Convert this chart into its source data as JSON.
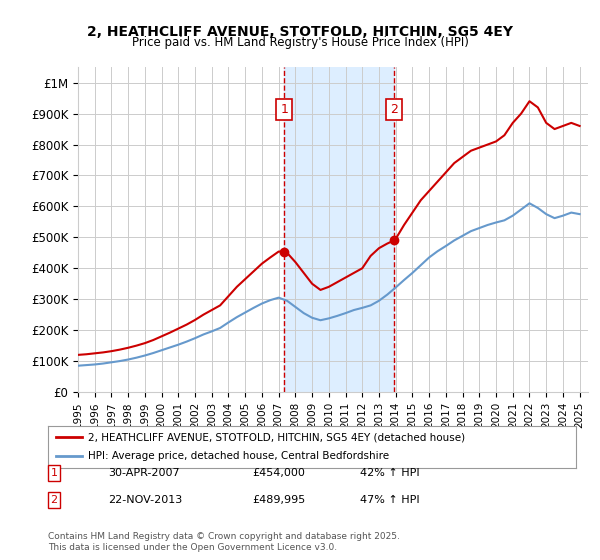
{
  "title": "2, HEATHCLIFF AVENUE, STOTFOLD, HITCHIN, SG5 4EY",
  "subtitle": "Price paid vs. HM Land Registry's House Price Index (HPI)",
  "legend_line1": "2, HEATHCLIFF AVENUE, STOTFOLD, HITCHIN, SG5 4EY (detached house)",
  "legend_line2": "HPI: Average price, detached house, Central Bedfordshire",
  "annotation1_label": "1",
  "annotation1_date": "30-APR-2007",
  "annotation1_price": "£454,000",
  "annotation1_hpi": "42% ↑ HPI",
  "annotation2_label": "2",
  "annotation2_date": "22-NOV-2013",
  "annotation2_price": "£489,995",
  "annotation2_hpi": "47% ↑ HPI",
  "footnote": "Contains HM Land Registry data © Crown copyright and database right 2025.\nThis data is licensed under the Open Government Licence v3.0.",
  "xmin": 1995,
  "xmax": 2025.5,
  "ymin": 0,
  "ymax": 1050000,
  "red_line_color": "#cc0000",
  "blue_line_color": "#6699cc",
  "shade_color": "#ddeeff",
  "annotation_box_color": "#cc0000",
  "vline_color": "#cc0000",
  "grid_color": "#cccccc",
  "bg_color": "#ffffff",
  "yticks": [
    0,
    100000,
    200000,
    300000,
    400000,
    500000,
    600000,
    700000,
    800000,
    900000,
    1000000
  ],
  "ytick_labels": [
    "£0",
    "£100K",
    "£200K",
    "£300K",
    "£400K",
    "£500K",
    "£600K",
    "£700K",
    "£800K",
    "£900K",
    "£1M"
  ],
  "xticks": [
    1995,
    1996,
    1997,
    1998,
    1999,
    2000,
    2001,
    2002,
    2003,
    2004,
    2005,
    2006,
    2007,
    2008,
    2009,
    2010,
    2011,
    2012,
    2013,
    2014,
    2015,
    2016,
    2017,
    2018,
    2019,
    2020,
    2021,
    2022,
    2023,
    2024,
    2025
  ],
  "sale1_x": 2007.33,
  "sale1_y": 454000,
  "sale2_x": 2013.9,
  "sale2_y": 489995,
  "red_x": [
    1995.0,
    1995.5,
    1996.0,
    1996.5,
    1997.0,
    1997.5,
    1998.0,
    1998.5,
    1999.0,
    1999.5,
    2000.0,
    2000.5,
    2001.0,
    2001.5,
    2002.0,
    2002.5,
    2003.0,
    2003.5,
    2004.0,
    2004.5,
    2005.0,
    2005.5,
    2006.0,
    2006.5,
    2007.0,
    2007.33,
    2007.5,
    2008.0,
    2008.5,
    2009.0,
    2009.5,
    2010.0,
    2010.5,
    2011.0,
    2011.5,
    2012.0,
    2012.5,
    2013.0,
    2013.5,
    2013.9,
    2014.0,
    2014.5,
    2015.0,
    2015.5,
    2016.0,
    2016.5,
    2017.0,
    2017.5,
    2018.0,
    2018.5,
    2019.0,
    2019.5,
    2020.0,
    2020.5,
    2021.0,
    2021.5,
    2022.0,
    2022.5,
    2023.0,
    2023.5,
    2024.0,
    2024.5,
    2025.0
  ],
  "red_y": [
    120000,
    122000,
    125000,
    128000,
    132000,
    137000,
    143000,
    150000,
    158000,
    168000,
    180000,
    192000,
    205000,
    218000,
    233000,
    250000,
    265000,
    280000,
    310000,
    340000,
    365000,
    390000,
    415000,
    435000,
    454000,
    454000,
    450000,
    420000,
    385000,
    350000,
    330000,
    340000,
    355000,
    370000,
    385000,
    400000,
    440000,
    465000,
    480000,
    489995,
    495000,
    540000,
    580000,
    620000,
    650000,
    680000,
    710000,
    740000,
    760000,
    780000,
    790000,
    800000,
    810000,
    830000,
    870000,
    900000,
    940000,
    920000,
    870000,
    850000,
    860000,
    870000,
    860000
  ],
  "blue_x": [
    1995.0,
    1995.5,
    1996.0,
    1996.5,
    1997.0,
    1997.5,
    1998.0,
    1998.5,
    1999.0,
    1999.5,
    2000.0,
    2000.5,
    2001.0,
    2001.5,
    2002.0,
    2002.5,
    2003.0,
    2003.5,
    2004.0,
    2004.5,
    2005.0,
    2005.5,
    2006.0,
    2006.5,
    2007.0,
    2007.5,
    2008.0,
    2008.5,
    2009.0,
    2009.5,
    2010.0,
    2010.5,
    2011.0,
    2011.5,
    2012.0,
    2012.5,
    2013.0,
    2013.5,
    2014.0,
    2014.5,
    2015.0,
    2015.5,
    2016.0,
    2016.5,
    2017.0,
    2017.5,
    2018.0,
    2018.5,
    2019.0,
    2019.5,
    2020.0,
    2020.5,
    2021.0,
    2021.5,
    2022.0,
    2022.5,
    2023.0,
    2023.5,
    2024.0,
    2024.5,
    2025.0
  ],
  "blue_y": [
    85000,
    87000,
    89000,
    92000,
    96000,
    100000,
    105000,
    111000,
    118000,
    126000,
    135000,
    144000,
    153000,
    163000,
    174000,
    186000,
    196000,
    207000,
    225000,
    242000,
    257000,
    272000,
    286000,
    297000,
    305000,
    295000,
    275000,
    255000,
    240000,
    232000,
    238000,
    246000,
    255000,
    265000,
    272000,
    280000,
    295000,
    315000,
    338000,
    362000,
    385000,
    410000,
    435000,
    455000,
    472000,
    490000,
    505000,
    520000,
    530000,
    540000,
    548000,
    555000,
    570000,
    590000,
    610000,
    595000,
    575000,
    562000,
    570000,
    580000,
    575000
  ]
}
